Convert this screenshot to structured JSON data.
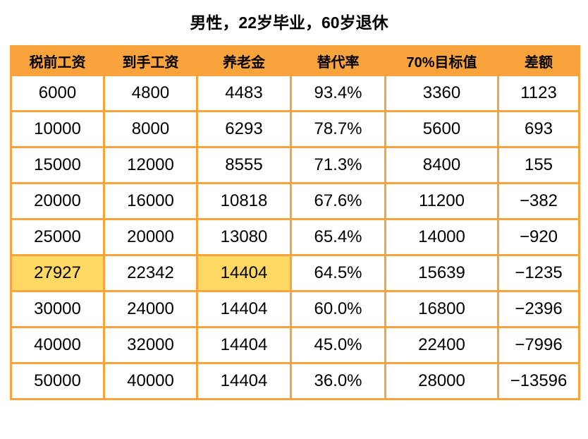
{
  "title": "男性，22岁毕业，60岁退休",
  "colors": {
    "header_bg": "#F8A33C",
    "border": "#F8A33C",
    "highlight_bg": "#FFD964",
    "text": "#000000",
    "page_bg": "#FFFFFF"
  },
  "chart_data": {
    "type": "table",
    "title": "男性，22岁毕业，60岁退休",
    "columns": [
      "税前工资",
      "到手工资",
      "养老金",
      "替代率",
      "70%目标值",
      "差额"
    ],
    "rows": [
      [
        "6000",
        "4800",
        "4483",
        "93.4%",
        "3360",
        "1123"
      ],
      [
        "10000",
        "8000",
        "6293",
        "78.7%",
        "5600",
        "693"
      ],
      [
        "15000",
        "12000",
        "8555",
        "71.3%",
        "8400",
        "155"
      ],
      [
        "20000",
        "16000",
        "10818",
        "67.6%",
        "11200",
        "−382"
      ],
      [
        "25000",
        "20000",
        "13080",
        "65.4%",
        "14000",
        "−920"
      ],
      [
        "27927",
        "22342",
        "14404",
        "64.5%",
        "15639",
        "−1235"
      ],
      [
        "30000",
        "24000",
        "14404",
        "60.0%",
        "16800",
        "−2396"
      ],
      [
        "40000",
        "32000",
        "14404",
        "45.0%",
        "22400",
        "−7996"
      ],
      [
        "50000",
        "40000",
        "14404",
        "36.0%",
        "28000",
        "−13596"
      ]
    ],
    "highlighted_cells": [
      {
        "row": 5,
        "col": 0
      },
      {
        "row": 5,
        "col": 2
      }
    ]
  }
}
